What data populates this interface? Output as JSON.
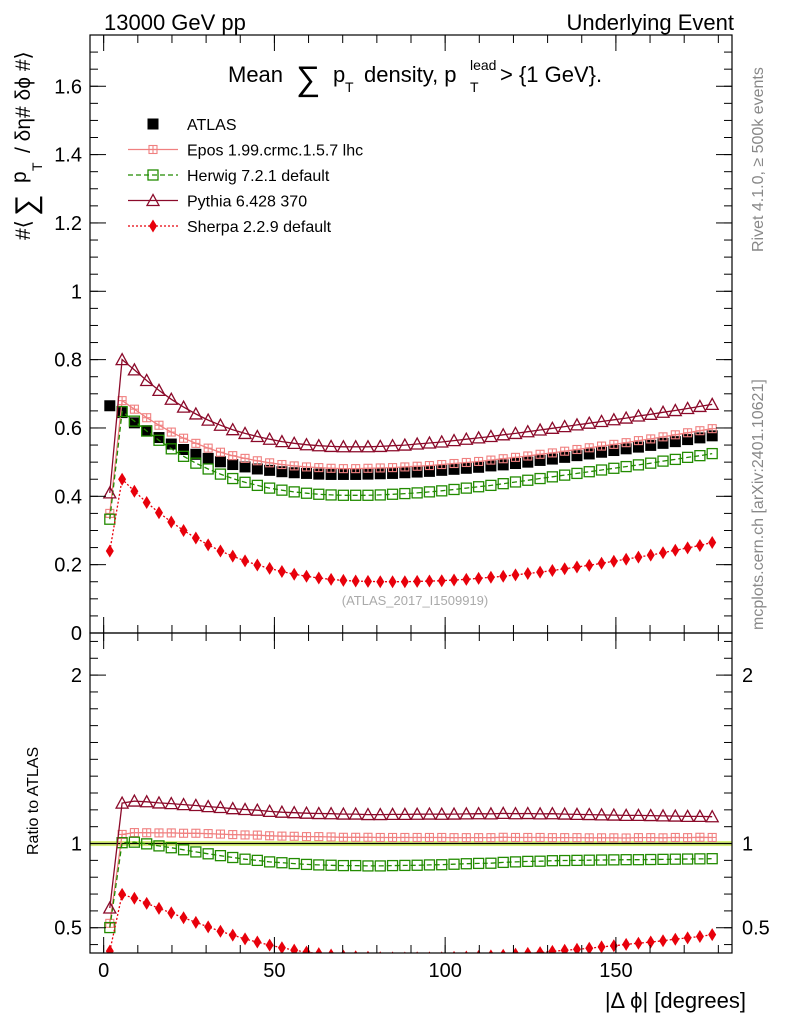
{
  "header": {
    "left": "13000 GeV pp",
    "right": "Underlying Event"
  },
  "side": {
    "rivet": "Rivet 4.1.0, ≥ 500k events",
    "mcplots": "mcplots.cern.ch [arXiv:2401.10621]"
  },
  "watermark": "(ATLAS_2017_I1509919)",
  "colors": {
    "atlas": "#000000",
    "epos": "#f08080",
    "herwig": "#228b00",
    "pythia": "#8b0a2a",
    "sherpa": "#e8000b",
    "band": "#d8f07a"
  },
  "chart_data": [
    {
      "type": "line",
      "panel": "main",
      "title": "Mean ∑ p_T density, p_T^lead > {1 GeV}.",
      "title_parts": [
        "Mean",
        "∑",
        "p",
        "T",
        "density, p",
        "lead",
        "T",
        "> {1 GeV}."
      ],
      "ylabel_parts": [
        "#⟨",
        "∑",
        "p",
        "T",
        "/ δη# δϕ #⟩"
      ],
      "xlim": [
        -4,
        184
      ],
      "ylim": [
        0,
        1.75
      ],
      "yticks": [
        0,
        0.2,
        0.4,
        0.6,
        0.8,
        1,
        1.2,
        1.4,
        1.6
      ],
      "ytick_labels": [
        "0",
        "0.2",
        "0.4",
        "0.6",
        "0.8",
        "1",
        "1.2",
        "1.4",
        "1.6"
      ],
      "x": [
        1.8,
        5.4,
        9.0,
        12.6,
        16.2,
        19.8,
        23.4,
        27.0,
        30.6,
        34.2,
        37.8,
        41.4,
        45.0,
        48.6,
        52.2,
        55.8,
        59.4,
        63.0,
        66.6,
        70.2,
        73.8,
        77.4,
        81.0,
        84.6,
        88.2,
        91.8,
        95.4,
        99.0,
        102.6,
        106.2,
        109.8,
        113.4,
        117.0,
        120.6,
        124.2,
        127.8,
        131.4,
        135.0,
        138.6,
        142.2,
        145.8,
        149.4,
        153.0,
        156.6,
        160.2,
        163.8,
        167.4,
        171.0,
        174.6,
        178.2
      ],
      "series": [
        {
          "name": "ATLAS",
          "values": [
            0.665,
            0.645,
            0.615,
            0.592,
            0.572,
            0.553,
            0.537,
            0.523,
            0.511,
            0.501,
            0.493,
            0.486,
            0.48,
            0.476,
            0.472,
            0.469,
            0.467,
            0.465,
            0.464,
            0.464,
            0.464,
            0.465,
            0.466,
            0.467,
            0.469,
            0.471,
            0.473,
            0.476,
            0.479,
            0.482,
            0.485,
            0.489,
            0.492,
            0.496,
            0.5,
            0.505,
            0.509,
            0.514,
            0.519,
            0.524,
            0.529,
            0.534,
            0.539,
            0.544,
            0.549,
            0.555,
            0.56,
            0.566,
            0.571,
            0.577
          ]
        },
        {
          "name": "Epos 1.99.crmc.1.5.7 lhc",
          "values": [
            0.35,
            0.68,
            0.655,
            0.63,
            0.608,
            0.588,
            0.57,
            0.555,
            0.541,
            0.529,
            0.519,
            0.511,
            0.504,
            0.498,
            0.493,
            0.489,
            0.486,
            0.484,
            0.482,
            0.481,
            0.481,
            0.482,
            0.483,
            0.484,
            0.486,
            0.488,
            0.49,
            0.493,
            0.496,
            0.499,
            0.502,
            0.506,
            0.51,
            0.514,
            0.518,
            0.523,
            0.527,
            0.532,
            0.537,
            0.542,
            0.547,
            0.552,
            0.557,
            0.563,
            0.568,
            0.574,
            0.58,
            0.586,
            0.592,
            0.598
          ]
        },
        {
          "name": "Herwig 7.2.1 default",
          "values": [
            0.333,
            0.648,
            0.62,
            0.591,
            0.564,
            0.539,
            0.517,
            0.497,
            0.48,
            0.465,
            0.452,
            0.441,
            0.432,
            0.424,
            0.418,
            0.413,
            0.409,
            0.406,
            0.404,
            0.403,
            0.403,
            0.403,
            0.404,
            0.406,
            0.408,
            0.41,
            0.413,
            0.416,
            0.42,
            0.424,
            0.428,
            0.432,
            0.437,
            0.442,
            0.447,
            0.452,
            0.457,
            0.462,
            0.467,
            0.472,
            0.477,
            0.482,
            0.487,
            0.492,
            0.497,
            0.503,
            0.508,
            0.514,
            0.519,
            0.525
          ]
        },
        {
          "name": "Pythia 6.428 370",
          "values": [
            0.41,
            0.8,
            0.77,
            0.739,
            0.71,
            0.684,
            0.661,
            0.641,
            0.623,
            0.608,
            0.595,
            0.584,
            0.575,
            0.567,
            0.56,
            0.555,
            0.551,
            0.548,
            0.546,
            0.545,
            0.545,
            0.545,
            0.546,
            0.548,
            0.55,
            0.553,
            0.556,
            0.559,
            0.563,
            0.567,
            0.571,
            0.575,
            0.58,
            0.584,
            0.589,
            0.594,
            0.599,
            0.604,
            0.609,
            0.614,
            0.619,
            0.624,
            0.629,
            0.635,
            0.64,
            0.646,
            0.651,
            0.657,
            0.663,
            0.669
          ]
        },
        {
          "name": "Sherpa 2.2.9 default",
          "values": [
            0.24,
            0.45,
            0.415,
            0.382,
            0.352,
            0.325,
            0.3,
            0.278,
            0.258,
            0.24,
            0.225,
            0.211,
            0.199,
            0.189,
            0.18,
            0.172,
            0.166,
            0.161,
            0.157,
            0.154,
            0.152,
            0.151,
            0.15,
            0.15,
            0.15,
            0.151,
            0.152,
            0.153,
            0.155,
            0.157,
            0.16,
            0.163,
            0.166,
            0.17,
            0.174,
            0.178,
            0.183,
            0.188,
            0.193,
            0.198,
            0.204,
            0.21,
            0.216,
            0.222,
            0.228,
            0.235,
            0.242,
            0.249,
            0.256,
            0.265
          ]
        }
      ]
    },
    {
      "type": "line",
      "panel": "ratio",
      "ylabel": "Ratio to ATLAS",
      "xlabel": "|Δ ϕ| [degrees]",
      "xlim": [
        -4,
        184
      ],
      "ylim": [
        0.35,
        2.25
      ],
      "yticks": [
        0.5,
        1,
        2
      ],
      "ytick_labels": [
        "0.5",
        "1",
        "2"
      ],
      "xticks": [
        0,
        50,
        100,
        150
      ],
      "xtick_labels": [
        "0",
        "50",
        "100",
        "150"
      ],
      "band": [
        0.985,
        1.015
      ],
      "x": [
        1.8,
        5.4,
        9.0,
        12.6,
        16.2,
        19.8,
        23.4,
        27.0,
        30.6,
        34.2,
        37.8,
        41.4,
        45.0,
        48.6,
        52.2,
        55.8,
        59.4,
        63.0,
        66.6,
        70.2,
        73.8,
        77.4,
        81.0,
        84.6,
        88.2,
        91.8,
        95.4,
        99.0,
        102.6,
        106.2,
        109.8,
        113.4,
        117.0,
        120.6,
        124.2,
        127.8,
        131.4,
        135.0,
        138.6,
        142.2,
        145.8,
        149.4,
        153.0,
        156.6,
        160.2,
        163.8,
        167.4,
        171.0,
        174.6,
        178.2
      ],
      "series": [
        {
          "name": "Epos 1.99.crmc.1.5.7 lhc",
          "values": [
            0.526,
            1.054,
            1.065,
            1.064,
            1.063,
            1.063,
            1.061,
            1.061,
            1.059,
            1.056,
            1.053,
            1.051,
            1.05,
            1.046,
            1.044,
            1.043,
            1.041,
            1.041,
            1.039,
            1.037,
            1.037,
            1.037,
            1.036,
            1.036,
            1.036,
            1.036,
            1.036,
            1.036,
            1.035,
            1.035,
            1.035,
            1.035,
            1.037,
            1.036,
            1.036,
            1.036,
            1.035,
            1.035,
            1.035,
            1.034,
            1.034,
            1.034,
            1.033,
            1.035,
            1.035,
            1.034,
            1.036,
            1.035,
            1.037,
            1.036
          ]
        },
        {
          "name": "Herwig 7.2.1 default",
          "values": [
            0.501,
            1.005,
            1.008,
            0.998,
            0.986,
            0.975,
            0.963,
            0.95,
            0.939,
            0.928,
            0.917,
            0.907,
            0.9,
            0.891,
            0.886,
            0.881,
            0.876,
            0.873,
            0.871,
            0.869,
            0.869,
            0.867,
            0.867,
            0.869,
            0.87,
            0.871,
            0.873,
            0.874,
            0.877,
            0.88,
            0.882,
            0.883,
            0.888,
            0.891,
            0.894,
            0.895,
            0.898,
            0.899,
            0.9,
            0.901,
            0.902,
            0.903,
            0.904,
            0.904,
            0.905,
            0.906,
            0.907,
            0.908,
            0.909,
            0.91
          ]
        },
        {
          "name": "Pythia 6.428 370",
          "values": [
            0.617,
            1.24,
            1.252,
            1.248,
            1.241,
            1.237,
            1.231,
            1.226,
            1.219,
            1.214,
            1.207,
            1.202,
            1.198,
            1.191,
            1.186,
            1.183,
            1.18,
            1.178,
            1.177,
            1.175,
            1.175,
            1.172,
            1.172,
            1.173,
            1.173,
            1.174,
            1.175,
            1.174,
            1.175,
            1.176,
            1.177,
            1.176,
            1.179,
            1.177,
            1.178,
            1.176,
            1.177,
            1.175,
            1.173,
            1.172,
            1.17,
            1.169,
            1.167,
            1.167,
            1.166,
            1.164,
            1.163,
            1.161,
            1.161,
            1.159
          ]
        },
        {
          "name": "Sherpa 2.2.9 default",
          "values": [
            0.361,
            0.698,
            0.675,
            0.645,
            0.615,
            0.588,
            0.559,
            0.532,
            0.505,
            0.479,
            0.456,
            0.434,
            0.415,
            0.397,
            0.381,
            0.367,
            0.355,
            0.346,
            0.338,
            0.332,
            0.328,
            0.325,
            0.322,
            0.321,
            0.32,
            0.321,
            0.321,
            0.321,
            0.324,
            0.326,
            0.33,
            0.333,
            0.337,
            0.343,
            0.348,
            0.352,
            0.36,
            0.366,
            0.372,
            0.378,
            0.386,
            0.393,
            0.401,
            0.408,
            0.415,
            0.423,
            0.432,
            0.44,
            0.448,
            0.459
          ]
        }
      ]
    }
  ]
}
